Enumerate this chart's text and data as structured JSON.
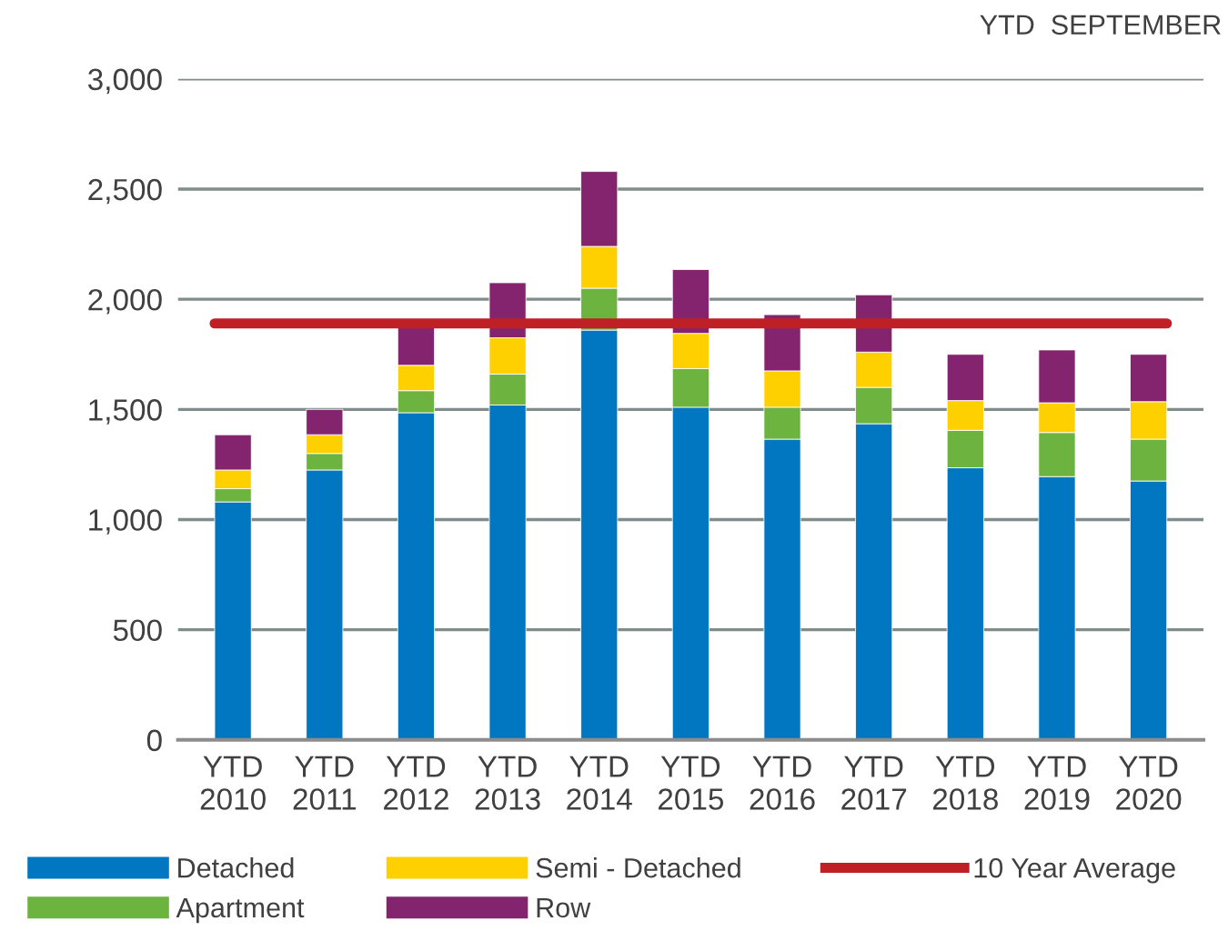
{
  "chart_data": {
    "type": "bar",
    "stacked": true,
    "subtitle": "YTD  SEPTEMBER",
    "categories": [
      "YTD\n2010",
      "YTD\n2011",
      "YTD\n2012",
      "YTD\n2013",
      "YTD\n2014",
      "YTD\n2015",
      "YTD\n2016",
      "YTD\n2017",
      "YTD\n2018",
      "YTD\n2019",
      "YTD\n2020"
    ],
    "series": [
      {
        "name": "Detached",
        "color": "#0077c0",
        "values": [
          1080,
          1225,
          1485,
          1520,
          1860,
          1510,
          1365,
          1435,
          1235,
          1195,
          1175
        ]
      },
      {
        "name": "Apartment",
        "color": "#6db33f",
        "values": [
          60,
          75,
          100,
          140,
          190,
          175,
          145,
          165,
          170,
          200,
          190
        ]
      },
      {
        "name": "Semi - Detached",
        "color": "#ffd000",
        "values": [
          85,
          85,
          115,
          165,
          190,
          160,
          165,
          160,
          135,
          135,
          170
        ]
      },
      {
        "name": "Row",
        "color": "#84246e",
        "values": [
          160,
          115,
          190,
          250,
          340,
          290,
          255,
          260,
          210,
          240,
          215
        ]
      }
    ],
    "ref_lines": [
      {
        "axis": "y",
        "value": 1890,
        "label": "10 Year Average",
        "color": "#be2026"
      }
    ],
    "ylim": [
      0,
      3000
    ],
    "yticks": [
      {
        "value": 0,
        "label": "0"
      },
      {
        "value": 500,
        "label": "500"
      },
      {
        "value": 1000,
        "label": "1,000"
      },
      {
        "value": 1500,
        "label": "1,500"
      },
      {
        "value": 2000,
        "label": "2,000"
      },
      {
        "value": 2500,
        "label": "2,500"
      },
      {
        "value": 3000,
        "label": "3,000"
      }
    ],
    "grid": "y",
    "legend": "bottom"
  }
}
